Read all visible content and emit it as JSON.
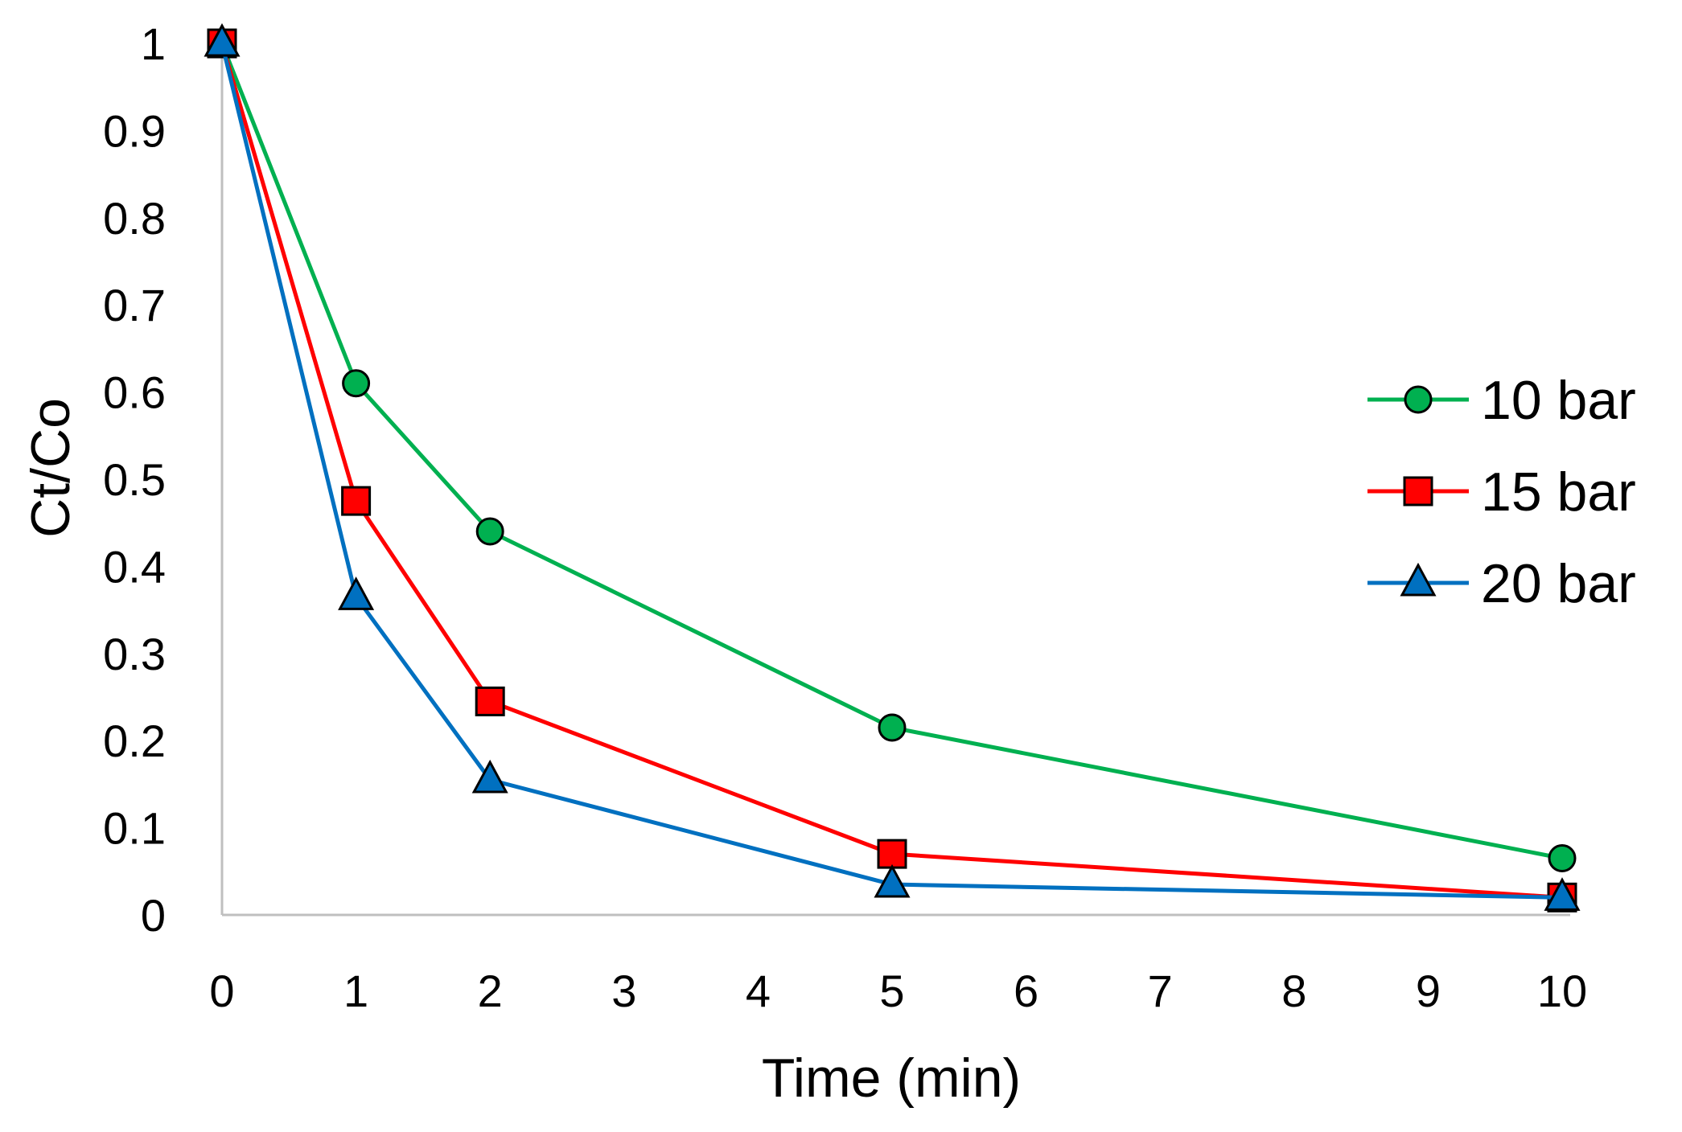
{
  "chart_data": {
    "type": "line",
    "title": "",
    "xlabel": "Time (min)",
    "ylabel": "Ct/Co",
    "x_tick_labels": [
      "0",
      "1",
      "2",
      "3",
      "4",
      "5",
      "6",
      "7",
      "8",
      "9",
      "10"
    ],
    "y_tick_labels": [
      "0",
      "0.1",
      "0.2",
      "0.3",
      "0.4",
      "0.5",
      "0.6",
      "0.7",
      "0.8",
      "0.9",
      "1"
    ],
    "ylim": [
      0,
      1
    ],
    "grid": false,
    "legend_position": "right",
    "x": [
      0,
      1,
      2,
      5,
      10
    ],
    "series": [
      {
        "name": "10 bar",
        "color": "#00b050",
        "marker": "circle",
        "values": [
          1.0,
          0.61,
          0.44,
          0.215,
          0.065
        ]
      },
      {
        "name": "15 bar",
        "color": "#ff0000",
        "marker": "square",
        "values": [
          1.0,
          0.475,
          0.245,
          0.07,
          0.02
        ]
      },
      {
        "name": "20 bar",
        "color": "#0070c0",
        "marker": "triangle",
        "values": [
          1.0,
          0.365,
          0.155,
          0.035,
          0.02
        ]
      }
    ]
  }
}
